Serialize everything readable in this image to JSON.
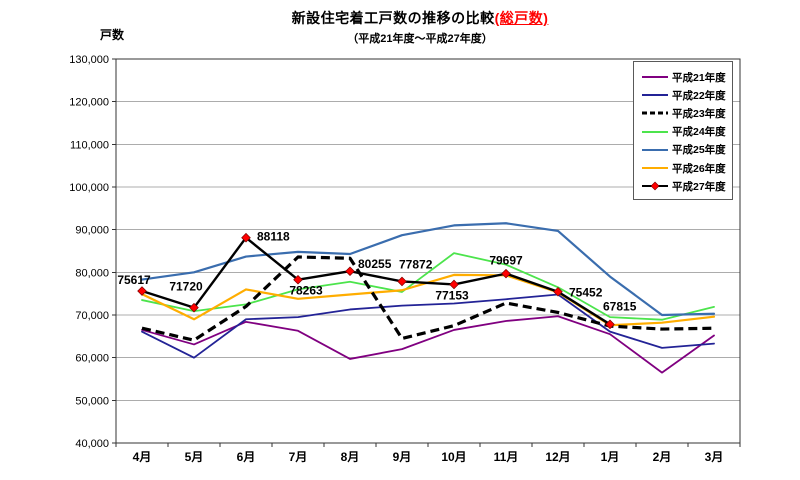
{
  "header": {
    "title_main": "新設住宅着工戸数の推移の比較",
    "title_highlight": "(総戸数)",
    "subtitle": "（平成21年度～平成27年度）",
    "highlight_color": "#ff0000"
  },
  "chart_data": {
    "type": "line",
    "title": "新設住宅着工戸数の推移の比較(総戸数)",
    "subtitle": "（平成21年度～平成27年度）",
    "ylabel": "戸数",
    "xlabel": "",
    "ylim": [
      40000,
      130000
    ],
    "ytick_step": 10000,
    "ytick_labels": [
      "40,000",
      "50,000",
      "60,000",
      "70,000",
      "80,000",
      "90,000",
      "100,000",
      "110,000",
      "120,000",
      "130,000"
    ],
    "categories": [
      "4月",
      "5月",
      "6月",
      "7月",
      "8月",
      "9月",
      "10月",
      "11月",
      "12月",
      "1月",
      "2月",
      "3月"
    ],
    "grid": true,
    "legend_position": "inside-top-right",
    "gridline_color": "#ACACAC",
    "axis_color": "#333333",
    "series": [
      {
        "name": "平成21年度",
        "color": "#800080",
        "style": "solid",
        "values": [
          66500,
          63100,
          68400,
          66300,
          59700,
          62000,
          66500,
          68600,
          69700,
          65500,
          56500,
          65200
        ]
      },
      {
        "name": "平成22年度",
        "color": "#232396",
        "style": "solid",
        "values": [
          66100,
          60000,
          69000,
          69500,
          71300,
          72200,
          72700,
          73700,
          74800,
          66100,
          62300,
          63300
        ]
      },
      {
        "name": "平成23年度",
        "color": "#000000",
        "style": "dashed",
        "values": [
          66900,
          64100,
          72000,
          83600,
          83300,
          64500,
          67500,
          72800,
          70600,
          67400,
          66700,
          66900
        ]
      },
      {
        "name": "平成24年度",
        "color": "#4CE44C",
        "style": "solid",
        "values": [
          73500,
          70900,
          72500,
          76000,
          77800,
          75400,
          84500,
          81800,
          76500,
          69500,
          68900,
          71900
        ]
      },
      {
        "name": "平成25年度",
        "color": "#3A6DAE",
        "style": "solid",
        "values": [
          78300,
          80000,
          83700,
          84800,
          84300,
          88700,
          91000,
          91500,
          89700,
          79000,
          70000,
          70300
        ]
      },
      {
        "name": "平成26年度",
        "color": "#FFAD00",
        "style": "solid",
        "values": [
          74900,
          69000,
          76000,
          73800,
          74800,
          75800,
          79400,
          79300,
          75300,
          67600,
          68200,
          69600
        ]
      },
      {
        "name": "平成27年度",
        "color": "#000000",
        "style": "solid",
        "marker": "red-diamond",
        "marker_color": "#FF0000",
        "values": [
          75617,
          71720,
          88118,
          78263,
          80255,
          77872,
          77153,
          79697,
          75452,
          67815,
          null,
          null
        ],
        "point_labels": [
          {
            "text": "75617",
            "dx": -8,
            "dy": -7,
            "anchor": "middle"
          },
          {
            "text": "71720",
            "dx": -8,
            "dy": -17,
            "anchor": "middle"
          },
          {
            "text": "88118",
            "dx": 11,
            "dy": 3,
            "anchor": "start"
          },
          {
            "text": "78263",
            "dx": 8,
            "dy": 15,
            "anchor": "middle"
          },
          {
            "text": "80255",
            "dx": 8,
            "dy": -3,
            "anchor": "start"
          },
          {
            "text": "77872",
            "dx": -3,
            "dy": -13,
            "anchor": "start"
          },
          {
            "text": "77153",
            "dx": -2,
            "dy": 15,
            "anchor": "middle"
          },
          {
            "text": "79697",
            "dx": 0,
            "dy": -9,
            "anchor": "middle"
          },
          {
            "text": "75452",
            "dx": 11,
            "dy": 5,
            "anchor": "start"
          },
          {
            "text": "67815",
            "dx": -7,
            "dy": -14,
            "anchor": "start"
          }
        ]
      }
    ]
  }
}
